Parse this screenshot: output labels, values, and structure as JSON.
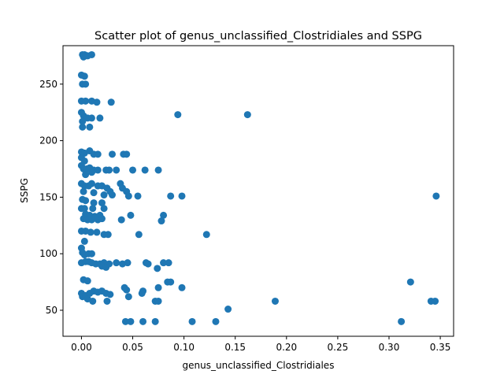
{
  "chart_data": {
    "type": "scatter",
    "title": "Scatter plot of genus_unclassified_Clostridiales and SSPG",
    "xlabel": "genus_unclassified_Clostridiales",
    "ylabel": "SSPG",
    "xlim": [
      -0.018,
      0.363
    ],
    "ylim": [
      27,
      284
    ],
    "xticks": [
      0.0,
      0.05,
      0.1,
      0.15,
      0.2,
      0.25,
      0.3,
      0.35
    ],
    "xtick_labels": [
      "0.00",
      "0.05",
      "0.10",
      "0.15",
      "0.20",
      "0.25",
      "0.30",
      "0.35"
    ],
    "yticks": [
      50,
      100,
      150,
      200,
      250
    ],
    "ytick_labels": [
      "50",
      "100",
      "150",
      "200",
      "250"
    ],
    "grid": false,
    "marker_color": "#1f77b4",
    "points": [
      [
        0.001,
        276
      ],
      [
        0.003,
        276
      ],
      [
        0.006,
        275
      ],
      [
        0.01,
        276
      ],
      [
        0.002,
        274
      ],
      [
        0.0,
        258
      ],
      [
        0.003,
        257
      ],
      [
        0.001,
        250
      ],
      [
        0.004,
        250
      ],
      [
        0.0,
        235
      ],
      [
        0.004,
        235
      ],
      [
        0.01,
        235
      ],
      [
        0.015,
        234
      ],
      [
        0.029,
        234
      ],
      [
        0.0,
        225
      ],
      [
        0.002,
        222
      ],
      [
        0.006,
        220
      ],
      [
        0.01,
        220
      ],
      [
        0.018,
        220
      ],
      [
        0.001,
        217
      ],
      [
        0.001,
        212
      ],
      [
        0.008,
        212
      ],
      [
        0.094,
        223
      ],
      [
        0.162,
        223
      ],
      [
        0.0,
        190
      ],
      [
        0.003,
        189
      ],
      [
        0.008,
        191
      ],
      [
        0.012,
        188
      ],
      [
        0.016,
        188
      ],
      [
        0.03,
        188
      ],
      [
        0.041,
        188
      ],
      [
        0.044,
        188
      ],
      [
        0.0,
        185
      ],
      [
        0.003,
        182
      ],
      [
        0.0,
        178
      ],
      [
        0.002,
        175
      ],
      [
        0.005,
        175
      ],
      [
        0.008,
        176
      ],
      [
        0.012,
        174
      ],
      [
        0.016,
        174
      ],
      [
        0.024,
        174
      ],
      [
        0.027,
        174
      ],
      [
        0.034,
        174
      ],
      [
        0.05,
        174
      ],
      [
        0.062,
        174
      ],
      [
        0.075,
        174
      ],
      [
        0.004,
        170
      ],
      [
        0.01,
        172
      ],
      [
        0.0,
        162
      ],
      [
        0.003,
        160
      ],
      [
        0.007,
        160
      ],
      [
        0.01,
        162
      ],
      [
        0.016,
        160
      ],
      [
        0.02,
        160
      ],
      [
        0.025,
        158
      ],
      [
        0.028,
        155
      ],
      [
        0.038,
        162
      ],
      [
        0.04,
        158
      ],
      [
        0.002,
        155
      ],
      [
        0.012,
        154
      ],
      [
        0.022,
        152
      ],
      [
        0.03,
        152
      ],
      [
        0.044,
        155
      ],
      [
        0.046,
        151
      ],
      [
        0.055,
        151
      ],
      [
        0.087,
        151
      ],
      [
        0.098,
        151
      ],
      [
        0.346,
        151
      ],
      [
        0.001,
        148
      ],
      [
        0.004,
        147
      ],
      [
        0.012,
        145
      ],
      [
        0.02,
        145
      ],
      [
        0.0,
        140
      ],
      [
        0.003,
        140
      ],
      [
        0.011,
        140
      ],
      [
        0.022,
        140
      ],
      [
        0.004,
        135
      ],
      [
        0.008,
        134
      ],
      [
        0.013,
        133
      ],
      [
        0.018,
        134
      ],
      [
        0.048,
        134
      ],
      [
        0.08,
        134
      ],
      [
        0.002,
        131
      ],
      [
        0.006,
        130
      ],
      [
        0.01,
        130
      ],
      [
        0.016,
        130
      ],
      [
        0.02,
        131
      ],
      [
        0.039,
        130
      ],
      [
        0.078,
        129
      ],
      [
        0.0,
        120
      ],
      [
        0.004,
        120
      ],
      [
        0.009,
        119
      ],
      [
        0.015,
        119
      ],
      [
        0.022,
        117
      ],
      [
        0.026,
        117
      ],
      [
        0.056,
        117
      ],
      [
        0.122,
        117
      ],
      [
        0.003,
        111
      ],
      [
        0.0,
        105
      ],
      [
        0.001,
        101
      ],
      [
        0.003,
        99
      ],
      [
        0.007,
        100
      ],
      [
        0.01,
        100
      ],
      [
        0.0,
        92
      ],
      [
        0.004,
        93
      ],
      [
        0.007,
        93
      ],
      [
        0.01,
        92
      ],
      [
        0.014,
        91
      ],
      [
        0.018,
        91
      ],
      [
        0.022,
        92
      ],
      [
        0.027,
        91
      ],
      [
        0.034,
        92
      ],
      [
        0.04,
        91
      ],
      [
        0.045,
        92
      ],
      [
        0.063,
        92
      ],
      [
        0.065,
        91
      ],
      [
        0.08,
        92
      ],
      [
        0.085,
        92
      ],
      [
        0.02,
        89
      ],
      [
        0.024,
        88
      ],
      [
        0.074,
        87
      ],
      [
        0.002,
        77
      ],
      [
        0.006,
        76
      ],
      [
        0.084,
        75
      ],
      [
        0.087,
        75
      ],
      [
        0.321,
        75
      ],
      [
        0.044,
        68
      ],
      [
        0.042,
        70
      ],
      [
        0.06,
        67
      ],
      [
        0.059,
        65
      ],
      [
        0.075,
        70
      ],
      [
        0.098,
        70
      ],
      [
        0.0,
        65
      ],
      [
        0.001,
        62
      ],
      [
        0.004,
        63
      ],
      [
        0.008,
        65
      ],
      [
        0.012,
        67
      ],
      [
        0.016,
        66
      ],
      [
        0.02,
        67
      ],
      [
        0.024,
        65
      ],
      [
        0.028,
        64
      ],
      [
        0.006,
        60
      ],
      [
        0.011,
        58
      ],
      [
        0.025,
        58
      ],
      [
        0.046,
        62
      ],
      [
        0.072,
        58
      ],
      [
        0.075,
        58
      ],
      [
        0.189,
        58
      ],
      [
        0.341,
        58
      ],
      [
        0.345,
        58
      ],
      [
        0.143,
        51
      ],
      [
        0.043,
        40
      ],
      [
        0.048,
        40
      ],
      [
        0.06,
        40
      ],
      [
        0.072,
        40
      ],
      [
        0.108,
        40
      ],
      [
        0.131,
        40
      ],
      [
        0.312,
        40
      ]
    ]
  }
}
